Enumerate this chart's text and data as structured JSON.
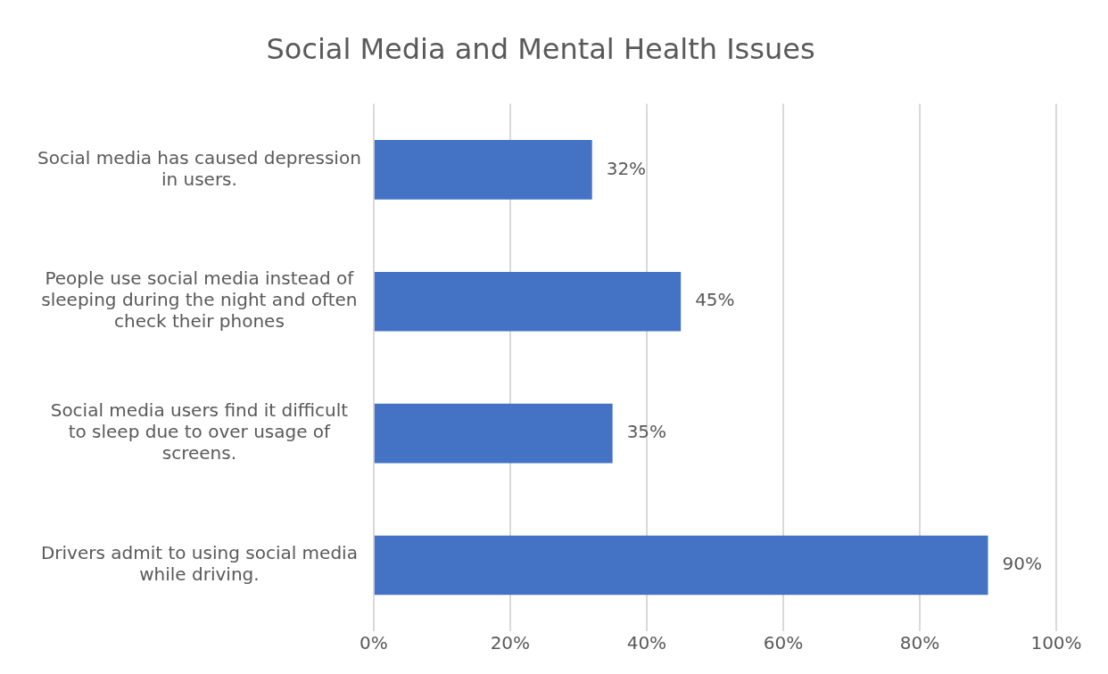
{
  "chart_data": {
    "type": "bar",
    "orientation": "horizontal",
    "title": "Social Media and Mental Health Issues",
    "categories": [
      "Social media has caused depression in users.",
      "People use social media instead of sleeping during the night and often check their phones",
      "Social media users find it difficult to sleep due to over usage of screens.",
      "Drivers admit to using social media while driving."
    ],
    "values": [
      32,
      45,
      35,
      90
    ],
    "value_labels": [
      "32%",
      "45%",
      "35%",
      "90%"
    ],
    "color": "#4472c4",
    "xlim": [
      0,
      100
    ],
    "xticks": [
      {
        "value": 0,
        "label": "0%"
      },
      {
        "value": 20,
        "label": "20%"
      },
      {
        "value": 40,
        "label": "40%"
      },
      {
        "value": 60,
        "label": "60%"
      },
      {
        "value": 80,
        "label": "80%"
      },
      {
        "value": 100,
        "label": "100%"
      }
    ],
    "grid": "x",
    "legend": false
  }
}
